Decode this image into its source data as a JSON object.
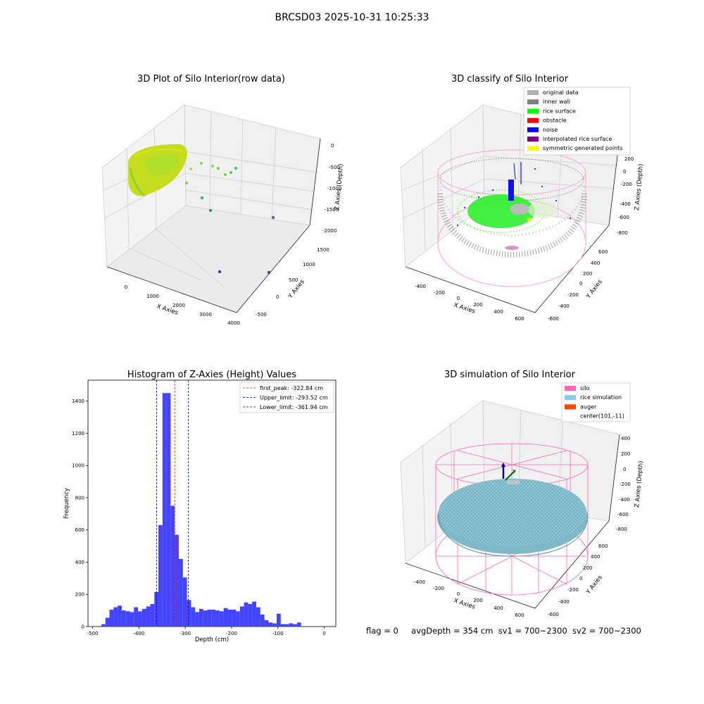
{
  "figure": {
    "title": "BRCSD03 2025-10-31 10:25:33"
  },
  "footer": {
    "flag": "flag = 0",
    "avg_depth": "avgDepth = 354 cm",
    "sv1": "sv1 = 700~2300",
    "sv2": "sv2 = 700~2300"
  },
  "chart_data": [
    {
      "type": "scatter",
      "title": "3D Plot of Silo Interior(row data)",
      "xlabel": "X Axies",
      "ylabel": "Y Axies",
      "zlabel": "Z Axies (Depth)",
      "xticks": [
        "0",
        "1000",
        "2000",
        "3000",
        "4000"
      ],
      "yticks": [
        "-500",
        "0",
        "500",
        "1000",
        "1500"
      ],
      "zticks": [
        "0",
        "-500",
        "-1000",
        "-1500",
        "-2000"
      ],
      "colormap": "viridis",
      "colors": {
        "surface": "#c6e11e",
        "surface_dark": "#8fd744",
        "outlier_mid": "#4fc27d",
        "outlier_low": "#6b2d8a"
      },
      "grid": true
    },
    {
      "type": "scatter",
      "title": "3D classify of Silo Interior",
      "xlabel": "X Axies",
      "ylabel": "Y Axies",
      "zlabel": "Z Axies (Depth)",
      "xticks": [
        "-400",
        "-200",
        "0",
        "200",
        "400",
        "600"
      ],
      "yticks": [
        "-600",
        "-400",
        "-200",
        "0",
        "200",
        "400",
        "600"
      ],
      "zticks": [
        "200",
        "0",
        "-200",
        "-400",
        "-600",
        "-800"
      ],
      "legend_position": "top-right",
      "legend": [
        {
          "name": "original data",
          "color": "#b0b0b0"
        },
        {
          "name": "inner wall",
          "color": "#808080"
        },
        {
          "name": "rice surface",
          "color": "#00ff00"
        },
        {
          "name": "obstacle",
          "color": "#ff0000"
        },
        {
          "name": "noise",
          "color": "#0000ff"
        },
        {
          "name": "interpolated rice surface",
          "color": "#800080"
        },
        {
          "name": "symmetric generated points",
          "color": "#ffff00"
        }
      ],
      "grid": true
    },
    {
      "type": "bar",
      "title": "Histogram of Z-Axies (Height) Values",
      "xlabel": "Depth (cm)",
      "ylabel": "Frequency",
      "xlim": [
        -510,
        25
      ],
      "ylim": [
        0,
        1530
      ],
      "xticks": [
        "-500",
        "-400",
        "-300",
        "-200",
        "-100",
        "0"
      ],
      "yticks": [
        "0",
        "200",
        "400",
        "600",
        "800",
        "1000",
        "1200",
        "1400"
      ],
      "bin_width": 8.8,
      "bins_start": -490,
      "values": [
        3,
        15,
        55,
        105,
        120,
        130,
        100,
        95,
        90,
        120,
        95,
        110,
        125,
        140,
        215,
        630,
        1450,
        1450,
        750,
        570,
        420,
        305,
        165,
        120,
        90,
        110,
        100,
        105,
        105,
        100,
        95,
        115,
        105,
        105,
        95,
        125,
        150,
        140,
        155,
        120,
        75,
        40,
        25,
        20,
        80,
        15,
        15,
        20,
        15,
        25
      ],
      "bar_color": "#4444ff",
      "lines": [
        {
          "label": "first_peak: -322.84 cm",
          "x": -322.84,
          "color": "#ff0000"
        },
        {
          "label": "Upper_limit: -293.52 cm",
          "x": -293.52,
          "color": "#0000cc"
        },
        {
          "label": "Lower_limit: -361.94 cm",
          "x": -361.94,
          "color": "#0000cc"
        }
      ],
      "legend_position": "top-right"
    },
    {
      "type": "scatter",
      "title": "3D simulation of Silo Interior",
      "xlabel": "X Axies",
      "ylabel": "Y Axies",
      "zlabel": "Z Axies (Depth)",
      "xticks": [
        "-400",
        "-200",
        "0",
        "200",
        "400",
        "600"
      ],
      "yticks": [
        "-600",
        "-400",
        "-200",
        "0",
        "200",
        "400",
        "600"
      ],
      "zticks": [
        "400",
        "200",
        "0",
        "-200",
        "-400",
        "-600",
        "-800"
      ],
      "legend_position": "top-right",
      "legend": [
        {
          "name": "silo",
          "color": "#ff69b4"
        },
        {
          "name": "rice simulation",
          "color": "#87ceeb"
        },
        {
          "name": "auger",
          "color": "#ff4500"
        },
        {
          "name": "center(101,-11)",
          "color": ""
        }
      ],
      "grid": true
    }
  ]
}
